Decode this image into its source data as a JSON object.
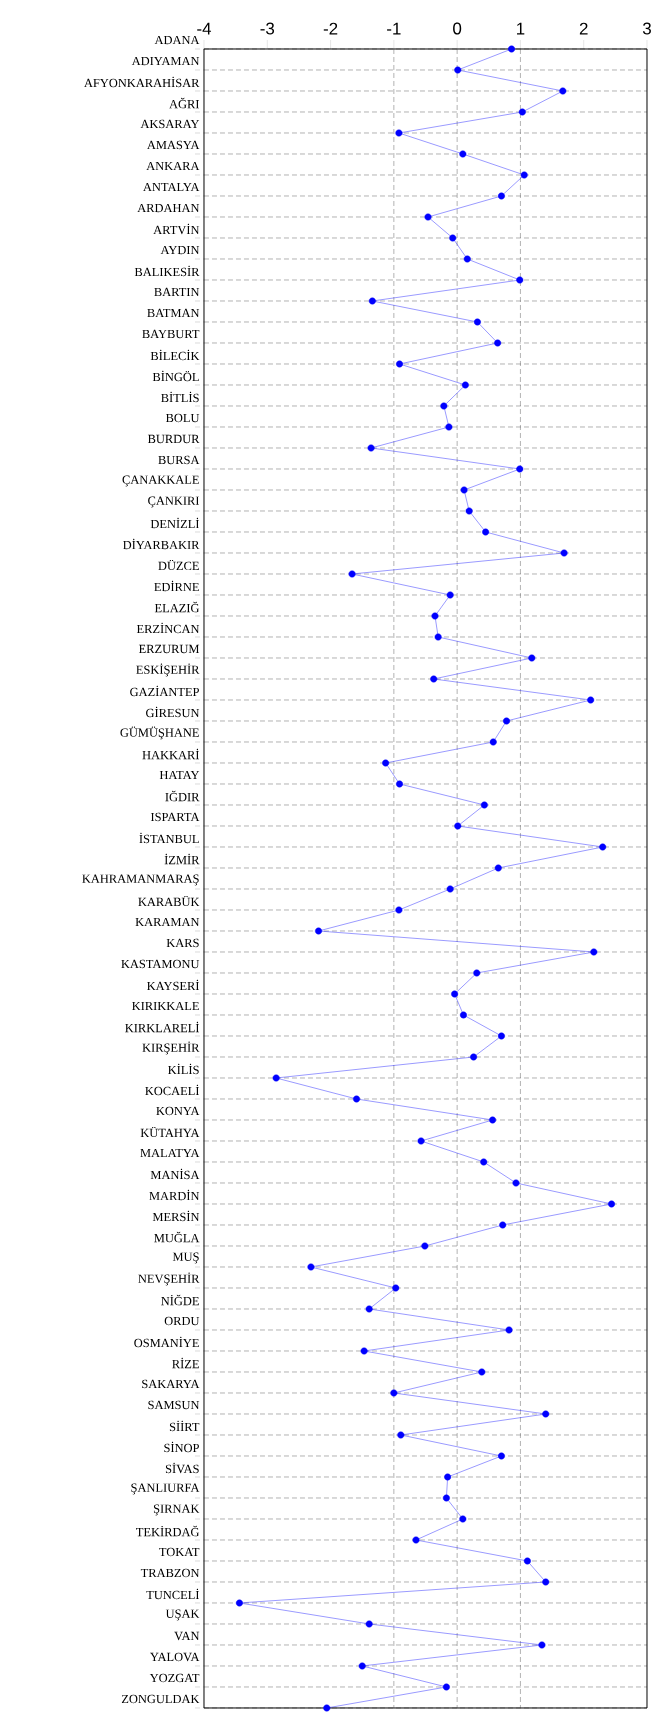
{
  "chart_data": {
    "type": "line",
    "orientation": "horizontal",
    "categories": [
      "ADANA",
      "ADIYAMAN",
      "AFYONKARAHİSAR",
      "AĞRI",
      "AKSARAY",
      "AMASYA",
      "ANKARA",
      "ANTALYA",
      "ARDAHAN",
      "ARTVİN",
      "AYDIN",
      "BALIKESİR",
      "BARTIN",
      "BATMAN",
      "BAYBURT",
      "BİLECİK",
      "BİNGÖL",
      "BİTLİS",
      "BOLU",
      "BURDUR",
      "BURSA",
      "ÇANAKKALE",
      "ÇANKIRI",
      "DENİZLİ",
      "DİYARBAKIR",
      "DÜZCE",
      "EDİRNE",
      "ELAZIĞ",
      "ERZİNCAN",
      "ERZURUM",
      "ESKİŞEHİR",
      "GAZİANTEP",
      "GİRESUN",
      "GÜMÜŞHANE",
      "HAKKARİ",
      "HATAY",
      "IĞDIR",
      "ISPARTA",
      "İSTANBUL",
      "İZMİR",
      "KAHRAMANMARAŞ",
      "KARABÜK",
      "KARAMAN",
      "KARS",
      "KASTAMONU",
      "KAYSERİ",
      "KIRIKKALE",
      "KIRKLARELİ",
      "KIRŞEHİR",
      "KİLİS",
      "KOCAELİ",
      "KONYA",
      "KÜTAHYA",
      "MALATYA",
      "MANİSA",
      "MARDİN",
      "MERSİN",
      "MUĞLA",
      "MUŞ",
      "NEVŞEHİR",
      "NİĞDE",
      "ORDU",
      "OSMANİYE",
      "RİZE",
      "SAKARYA",
      "SAMSUN",
      "SİİRT",
      "SİNOP",
      "SİVAS",
      "ŞANLIURFA",
      "ŞIRNAK",
      "TEKİRDAĞ",
      "TOKAT",
      "TRABZON",
      "TUNCELİ",
      "UŞAK",
      "VAN",
      "YALOVA",
      "YOZGAT",
      "ZONGULDAK"
    ],
    "values": [
      0.86,
      0.01,
      1.67,
      1.03,
      -0.92,
      0.09,
      1.06,
      0.7,
      -0.46,
      -0.07,
      0.16,
      0.99,
      -1.34,
      0.32,
      0.64,
      -0.91,
      0.13,
      -0.21,
      -0.13,
      -1.36,
      0.99,
      0.11,
      0.19,
      0.45,
      1.69,
      -1.66,
      -0.11,
      -0.35,
      -0.3,
      1.18,
      -0.37,
      2.11,
      0.78,
      0.57,
      -1.13,
      -0.91,
      0.43,
      0.01,
      2.3,
      0.65,
      -0.11,
      -0.92,
      -2.19,
      2.16,
      0.31,
      -0.04,
      0.1,
      0.7,
      0.26,
      -2.86,
      -1.59,
      0.56,
      -0.57,
      0.42,
      0.93,
      2.44,
      0.72,
      -0.51,
      -2.31,
      -0.97,
      -1.39,
      0.82,
      -1.47,
      0.39,
      -1.0,
      1.4,
      -0.89,
      0.7,
      -0.15,
      -0.17,
      0.09,
      -0.65,
      1.11,
      1.4,
      -3.44,
      -1.39,
      1.34,
      -1.5,
      -0.17,
      -2.06
    ],
    "color": "#0000ff",
    "marker": "circle",
    "xlim": [
      -4,
      3
    ],
    "xticks": [
      -4,
      -3,
      -2,
      -1,
      0,
      1,
      2,
      3
    ],
    "grid": "y",
    "ref_lines": [
      {
        "axis": "x",
        "value": -1,
        "line_style": "dashed"
      },
      {
        "axis": "x",
        "value": 0,
        "line_style": "dashed"
      },
      {
        "axis": "x",
        "value": 1,
        "line_style": "dashed"
      }
    ]
  }
}
